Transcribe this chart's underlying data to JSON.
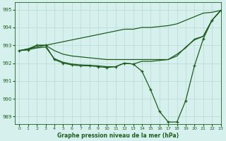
{
  "title": "Graphe pression niveau de la mer (hPa)",
  "bg_color": "#d6f0ee",
  "grid_color": "#b8d8d4",
  "line_color": "#1e5c1e",
  "xlim": [
    -0.5,
    23
  ],
  "ylim": [
    988.6,
    995.4
  ],
  "yticks": [
    989,
    990,
    991,
    992,
    993,
    994,
    995
  ],
  "xticks": [
    0,
    1,
    2,
    3,
    4,
    5,
    6,
    7,
    8,
    9,
    10,
    11,
    12,
    13,
    14,
    15,
    16,
    17,
    18,
    19,
    20,
    21,
    22,
    23
  ],
  "line_top": [
    992.7,
    992.8,
    993.0,
    993.0,
    993.1,
    993.2,
    993.3,
    993.4,
    993.5,
    993.6,
    993.7,
    993.8,
    993.9,
    993.9,
    994.0,
    994.0,
    994.05,
    994.1,
    994.2,
    994.4,
    994.6,
    994.8,
    994.85,
    994.95
  ],
  "line_mid_upper": [
    992.7,
    992.8,
    992.9,
    993.0,
    992.7,
    992.5,
    992.4,
    992.35,
    992.3,
    992.25,
    992.2,
    992.2,
    992.2,
    992.2,
    992.2,
    992.2,
    992.2,
    992.2,
    992.5,
    992.85,
    993.35,
    993.5,
    994.4,
    994.95
  ],
  "line_mid_lower": [
    992.7,
    992.75,
    992.85,
    992.9,
    992.25,
    992.05,
    991.95,
    991.9,
    991.88,
    991.85,
    991.8,
    991.8,
    992.0,
    991.95,
    992.1,
    992.1,
    992.15,
    992.2,
    992.4,
    992.9,
    993.3,
    993.5,
    994.4,
    994.95
  ],
  "line_main": [
    992.7,
    992.75,
    993.0,
    993.0,
    992.2,
    992.0,
    991.9,
    991.85,
    991.85,
    991.8,
    991.75,
    991.8,
    992.0,
    991.95,
    991.55,
    990.5,
    989.3,
    988.7,
    988.7,
    989.9,
    991.85,
    993.35,
    994.4,
    994.95
  ]
}
